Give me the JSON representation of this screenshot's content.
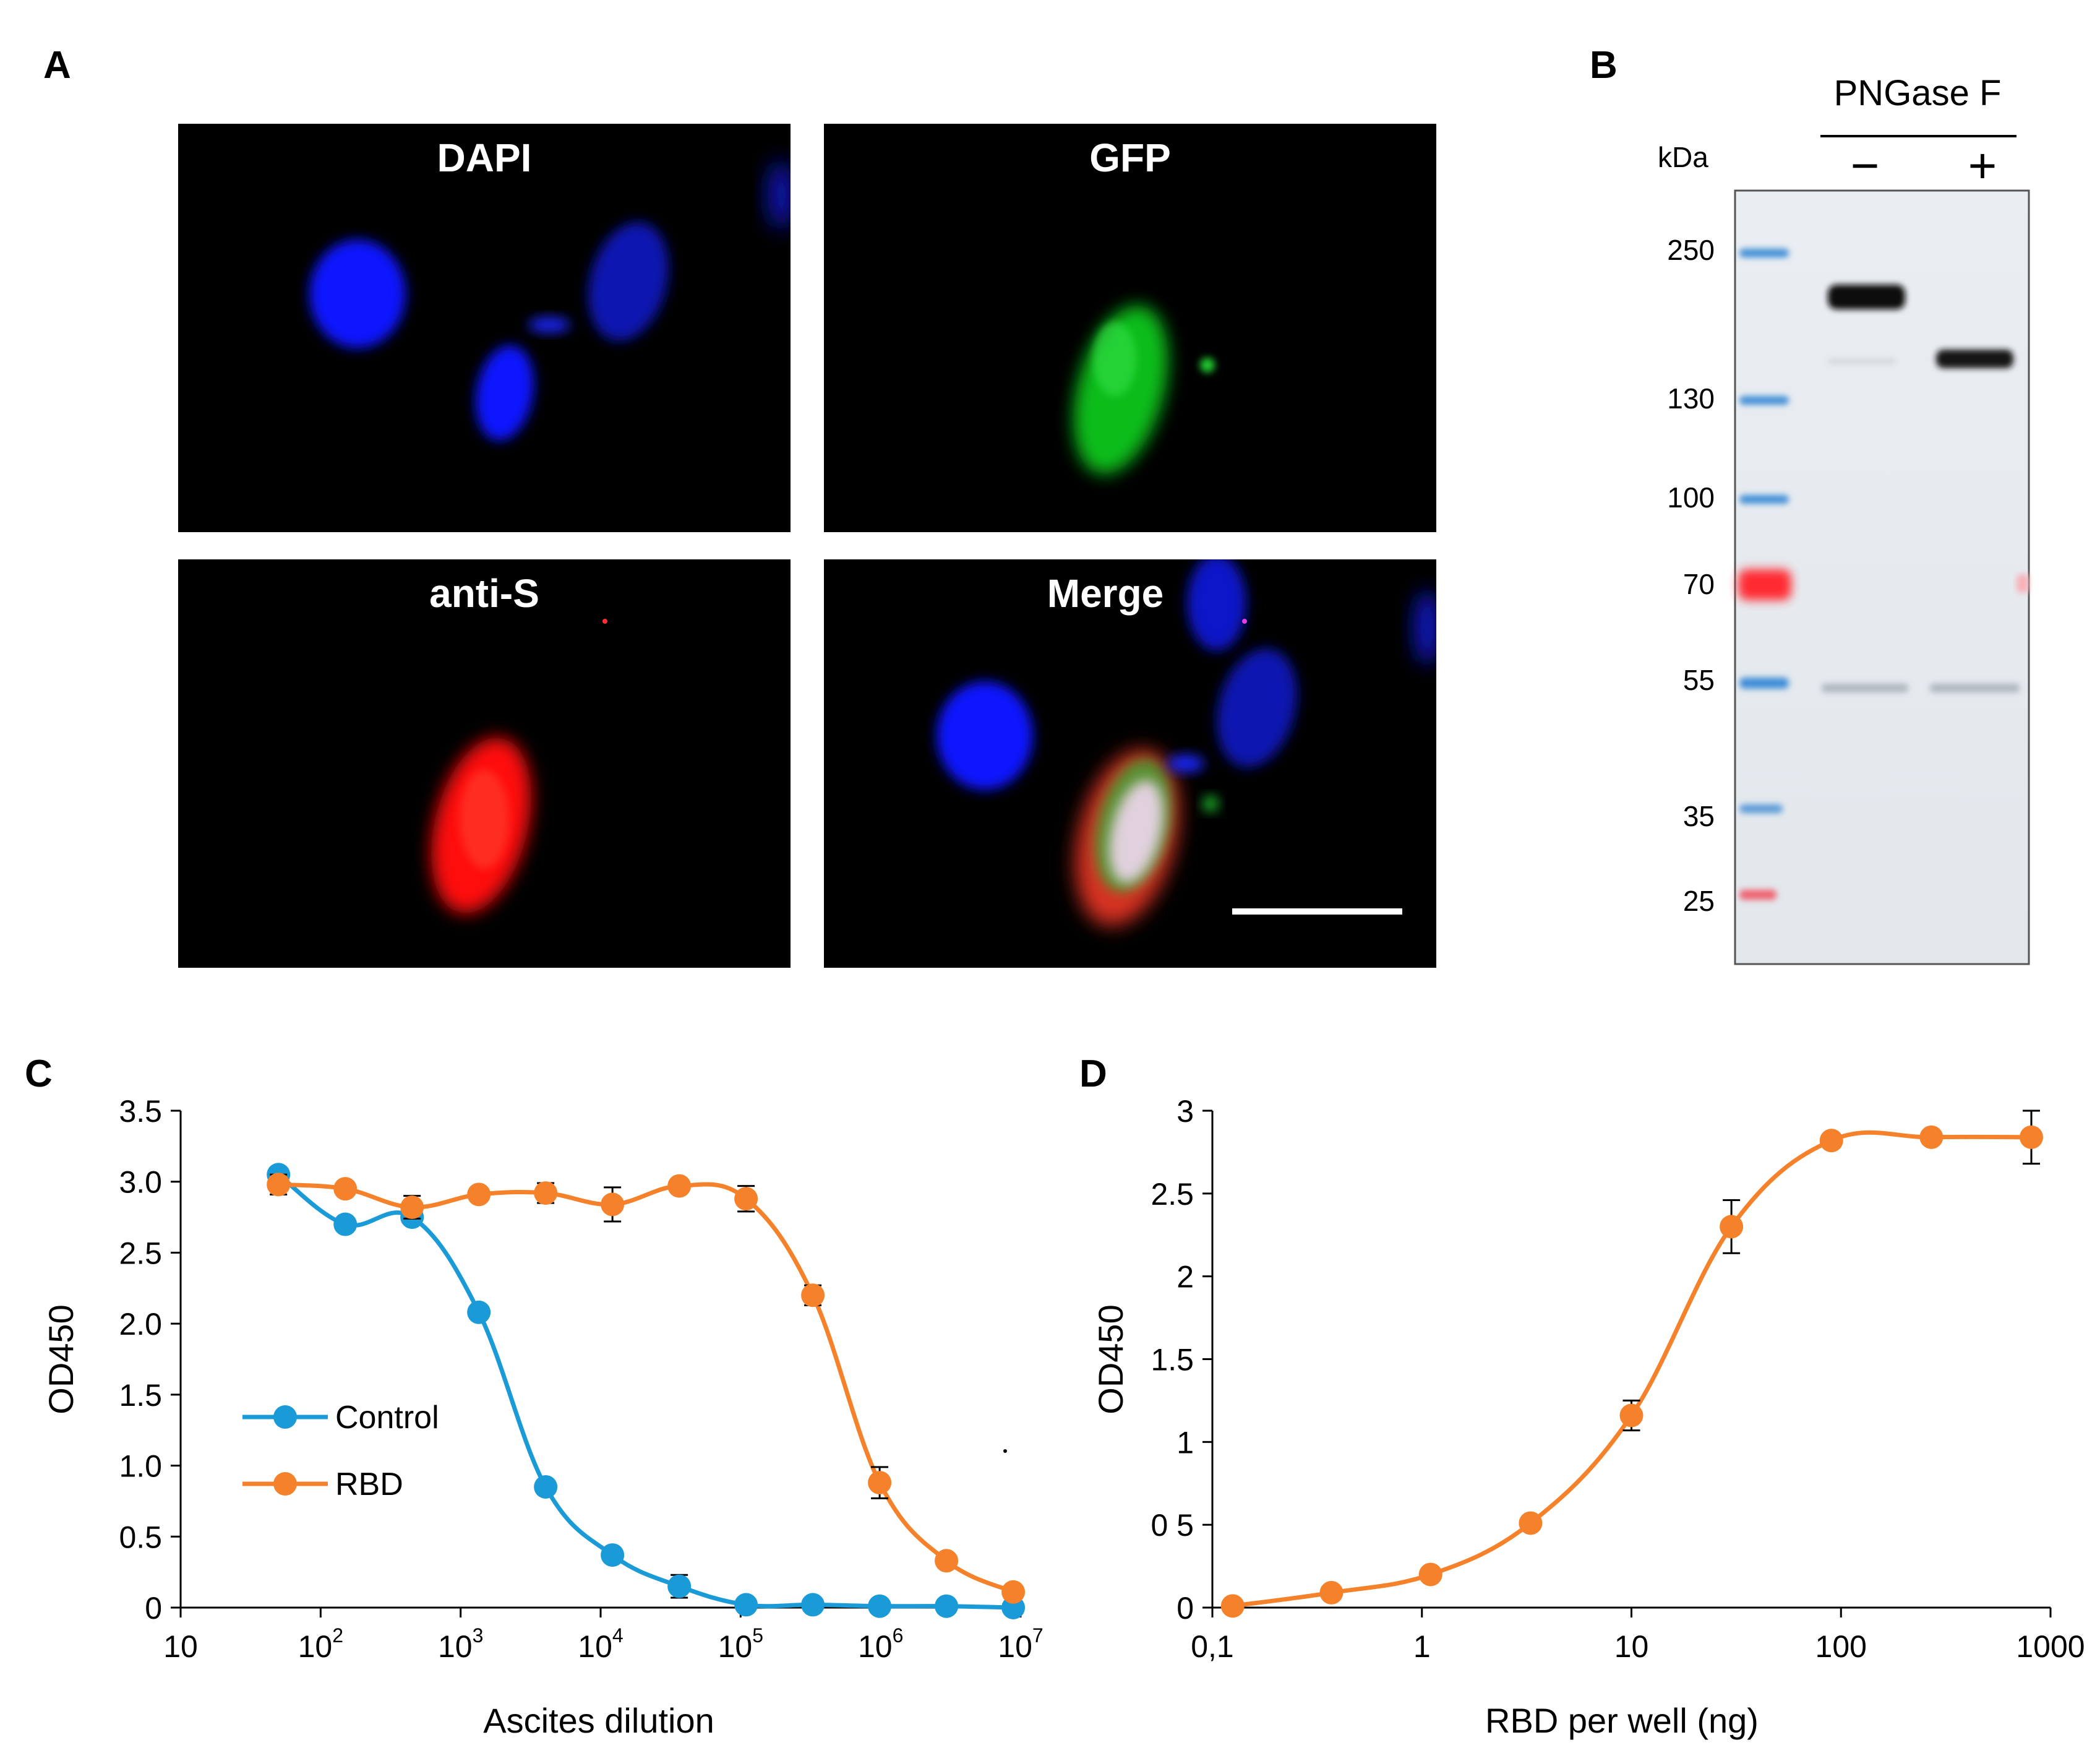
{
  "panels": {
    "a": "A",
    "b": "B",
    "c": "C",
    "d": "D"
  },
  "microscopy": [
    {
      "label": "DAPI"
    },
    {
      "label": "GFP"
    },
    {
      "label": "anti-S"
    },
    {
      "label": "Merge"
    }
  ],
  "blot": {
    "treatment": "PNGase F",
    "minus": "−",
    "plus": "+",
    "unit": "kDa",
    "markers": [
      "250",
      "130",
      "100",
      "70",
      "55",
      "35",
      "25"
    ]
  },
  "chart_data": [
    {
      "type": "line",
      "xlabel": "Ascites dilution",
      "ylabel": "OD450",
      "x_scale": "log",
      "xlim": [
        10,
        10000000
      ],
      "ylim": [
        0,
        3.5
      ],
      "x_tick_labels": [
        "10",
        "10",
        "10",
        "10",
        "10",
        "10",
        "10"
      ],
      "x_tick_exponents": [
        "",
        "2",
        "3",
        "4",
        "5",
        "6",
        "7"
      ],
      "y_tick_labels": [
        "0",
        "0.5",
        "1.0",
        "1.5",
        "2.0",
        "2.5",
        "3.0",
        "3.5"
      ],
      "legend_placement": "center-left",
      "series": [
        {
          "name": "Control",
          "color": "#1a9ad6",
          "x": [
            50,
            150,
            450,
            1350,
            4050,
            12150,
            36450,
            109350,
            328050,
            984150,
            2952450,
            8857350
          ],
          "y": [
            3.05,
            2.7,
            2.75,
            2.08,
            0.85,
            0.37,
            0.15,
            0.02,
            0.02,
            0.01,
            0.01,
            0.0
          ],
          "err": [
            0,
            0,
            0,
            0,
            0,
            0,
            0.08,
            0,
            0,
            0.03,
            0.02,
            0
          ]
        },
        {
          "name": "RBD",
          "color": "#f5822a",
          "x": [
            50,
            150,
            450,
            1350,
            4050,
            12150,
            36450,
            109350,
            328050,
            984150,
            2952450,
            8857350
          ],
          "y": [
            2.98,
            2.95,
            2.82,
            2.91,
            2.92,
            2.84,
            2.97,
            2.88,
            2.2,
            0.88,
            0.33,
            0.11
          ],
          "err": [
            0.07,
            0.05,
            0.08,
            0,
            0.07,
            0.12,
            0,
            0.09,
            0.07,
            0.11,
            0,
            0
          ]
        }
      ]
    },
    {
      "type": "line",
      "xlabel": "RBD per well (ng)",
      "ylabel": "OD450",
      "x_scale": "log",
      "xlim": [
        0.1,
        1000
      ],
      "ylim": [
        0,
        3
      ],
      "x_tick_labels": [
        "0,1",
        "1",
        "10",
        "100",
        "1000"
      ],
      "y_tick_labels": [
        "0",
        "0 5",
        "1",
        "1.5",
        "2",
        "2.5",
        "3"
      ],
      "series": [
        {
          "color": "#f5822a",
          "x": [
            0.125,
            0.37,
            1.1,
            3.3,
            10,
            30,
            90,
            270,
            810
          ],
          "y": [
            0.01,
            0.09,
            0.2,
            0.51,
            1.16,
            2.3,
            2.82,
            2.84,
            2.84
          ],
          "err": [
            0,
            0,
            0,
            0,
            0.09,
            0.16,
            0,
            0.04,
            0.16
          ]
        }
      ]
    }
  ]
}
